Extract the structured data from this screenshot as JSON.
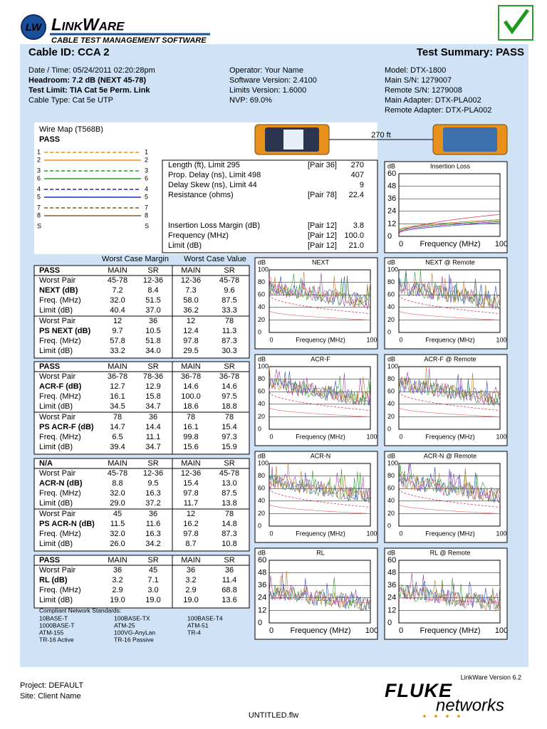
{
  "header": {
    "logo_mark": "LW",
    "brand": "LinkWare",
    "tagline": "CABLE TEST MANAGEMENT SOFTWARE"
  },
  "cable_id": "Cable ID: CCA 2",
  "summary": "Test Summary: PASS",
  "info": [
    [
      {
        "text": "Date / Time: 05/24/2011 02:20:28pm"
      },
      {
        "text": "Headroom: 7.2 dB (NEXT 45-78)",
        "bold": true
      },
      {
        "text": "Test Limit: TIA Cat 5e Perm. Link",
        "bold": true
      },
      {
        "text": "Cable Type: Cat 5e UTP"
      }
    ],
    [
      {
        "text": "Operator: Your Name"
      },
      {
        "text": "Software Version: 2.4100"
      },
      {
        "text": "Limits Version: 1.6000"
      },
      {
        "text": "NVP: 69.0%"
      }
    ],
    [
      {
        "text": "Model: DTX-1800"
      },
      {
        "text": "Main S/N: 1279007"
      },
      {
        "text": "Remote S/N: 1279008"
      },
      {
        "text": "Main Adapter: DTX-PLA002"
      },
      {
        "text": "Remote Adapter: DTX-PLA002"
      }
    ]
  ],
  "wire_map": {
    "title": "Wire Map (T568B)",
    "status": "PASS",
    "pins": [
      "1",
      "2",
      "3",
      "6",
      "4",
      "5",
      "7",
      "8",
      "S"
    ]
  },
  "link_length": "270 ft",
  "measurements": [
    {
      "label": "Length (ft), Limit 295",
      "pair": "[Pair 36]",
      "value": "270"
    },
    {
      "label": "Prop. Delay (ns), Limit 498",
      "value": "407"
    },
    {
      "label": "Delay Skew (ns), Limit 44",
      "value": "9"
    },
    {
      "label": "Resistance (ohms)",
      "pair": "[Pair 78]",
      "value": "22.4"
    },
    {
      "label": "Insertion Loss Margin (dB)",
      "pair": "[Pair 12]",
      "value": "3.8"
    },
    {
      "label": "Frequency (MHz)",
      "pair": "[Pair 12]",
      "value": "100.0"
    },
    {
      "label": "Limit (dB)",
      "pair": "[Pair 12]",
      "value": "21.0"
    }
  ],
  "chart_labels": {
    "unit": "dB",
    "x_label": "Frequency (MHz)",
    "x_min": "0",
    "x_max": "100"
  },
  "insertion_loss": {
    "title": "Insertion Loss",
    "yticks": [
      60,
      48,
      36,
      24,
      12,
      0
    ]
  },
  "charts": [
    {
      "title": "NEXT",
      "yticks": [
        100,
        80,
        60,
        40,
        20,
        0
      ]
    },
    {
      "title": "NEXT @ Remote",
      "yticks": [
        100,
        80,
        60,
        40,
        20,
        0
      ]
    },
    {
      "title": "ACR-F",
      "yticks": [
        100,
        80,
        60,
        40,
        20,
        0
      ]
    },
    {
      "title": "ACR-F @ Remote",
      "yticks": [
        100,
        80,
        60,
        40,
        20,
        0
      ]
    },
    {
      "title": "ACR-N",
      "yticks": [
        100,
        80,
        60,
        40,
        20,
        0
      ]
    },
    {
      "title": "ACR-N @ Remote",
      "yticks": [
        100,
        80,
        60,
        40,
        20,
        0
      ]
    },
    {
      "title": "RL",
      "yticks": [
        60,
        48,
        36,
        24,
        12,
        0
      ]
    },
    {
      "title": "RL @ Remote",
      "yticks": [
        60,
        48,
        36,
        24,
        12,
        0
      ]
    }
  ],
  "table": {
    "group_headers": [
      "Worst Case Margin",
      "Worst Case Value"
    ],
    "sections": [
      {
        "status": "PASS",
        "columns": [
          "MAIN",
          "SR",
          "MAIN",
          "SR"
        ],
        "rows": [
          [
            "Worst Pair",
            "45-78",
            "12-36",
            "12-36",
            "45-78"
          ],
          [
            "NEXT (dB)",
            "7.2",
            "8.4",
            "7.3",
            "9.6"
          ],
          [
            "Freq. (MHz)",
            "32.0",
            "51.5",
            "58.0",
            "87.5"
          ],
          [
            "Limit (dB)",
            "40.4",
            "37.0",
            "36.2",
            "33.3"
          ],
          [
            "Worst Pair",
            "12",
            "36",
            "12",
            "78"
          ],
          [
            "PS NEXT (dB)",
            "9.7",
            "10.5",
            "12.4",
            "11.3"
          ],
          [
            "Freq. (MHz)",
            "57.8",
            "51.8",
            "97.8",
            "87.3"
          ],
          [
            "Limit (dB)",
            "33.2",
            "34.0",
            "29.5",
            "30.3"
          ]
        ]
      },
      {
        "status": "PASS",
        "columns": [
          "MAIN",
          "SR",
          "MAIN",
          "SR"
        ],
        "rows": [
          [
            "Worst Pair",
            "36-78",
            "78-36",
            "36-78",
            "36-78"
          ],
          [
            "ACR-F (dB)",
            "12.7",
            "12.9",
            "14.6",
            "14.6"
          ],
          [
            "Freq. (MHz)",
            "16.1",
            "15.8",
            "100.0",
            "97.5"
          ],
          [
            "Limit (dB)",
            "34.5",
            "34.7",
            "18.6",
            "18.8"
          ],
          [
            "Worst Pair",
            "78",
            "36",
            "78",
            "78"
          ],
          [
            "PS ACR-F (dB)",
            "14.7",
            "14.4",
            "16.1",
            "15.4"
          ],
          [
            "Freq. (MHz)",
            "6.5",
            "11.1",
            "99.8",
            "97.3"
          ],
          [
            "Limit (dB)",
            "39.4",
            "34.7",
            "15.6",
            "15.9"
          ]
        ]
      },
      {
        "status": "N/A",
        "columns": [
          "MAIN",
          "SR",
          "MAIN",
          "SR"
        ],
        "rows": [
          [
            "Worst Pair",
            "45-78",
            "12-36",
            "12-36",
            "45-78"
          ],
          [
            "ACR-N (dB)",
            "8.8",
            "9.5",
            "15.4",
            "13.0"
          ],
          [
            "Freq. (MHz)",
            "32.0",
            "16.3",
            "97.8",
            "87.5"
          ],
          [
            "Limit (dB)",
            "29.0",
            "37.2",
            "11.7",
            "13.8"
          ],
          [
            "Worst Pair",
            "45",
            "36",
            "12",
            "78"
          ],
          [
            "PS ACR-N (dB)",
            "11.5",
            "11.6",
            "16.2",
            "14.8"
          ],
          [
            "Freq. (MHz)",
            "32.0",
            "16.3",
            "97.8",
            "87.3"
          ],
          [
            "Limit (dB)",
            "26.0",
            "34.2",
            "8.7",
            "10.8"
          ]
        ]
      },
      {
        "status": "PASS",
        "columns": [
          "MAIN",
          "SR",
          "MAIN",
          "SR"
        ],
        "rows": [
          [
            "Worst Pair",
            "36",
            "45",
            "36",
            "36"
          ],
          [
            "RL (dB)",
            "3.2",
            "7.1",
            "3.2",
            "11.4"
          ],
          [
            "Freq. (MHz)",
            "2.9",
            "3.0",
            "2.9",
            "68.8"
          ],
          [
            "Limit (dB)",
            "19.0",
            "19.0",
            "19.0",
            "13.6"
          ]
        ]
      }
    ]
  },
  "standards": {
    "title": "Compliant Network Standards:",
    "items": [
      "10BASE-T",
      "100BASE-TX",
      "100BASE-T4",
      "1000BASE-T",
      "ATM-25",
      "ATM-51",
      "ATM-155",
      "100VG-AnyLan",
      "TR-4",
      "TR-16 Active",
      "TR-16 Passive"
    ]
  },
  "footer": {
    "version": "LinkWare Version  6.2",
    "project": "Project: DEFAULT",
    "site": "Site: Client Name",
    "file": "UNTITLED.flw",
    "brand_top": "FLUKE",
    "brand_bottom": "networks"
  }
}
